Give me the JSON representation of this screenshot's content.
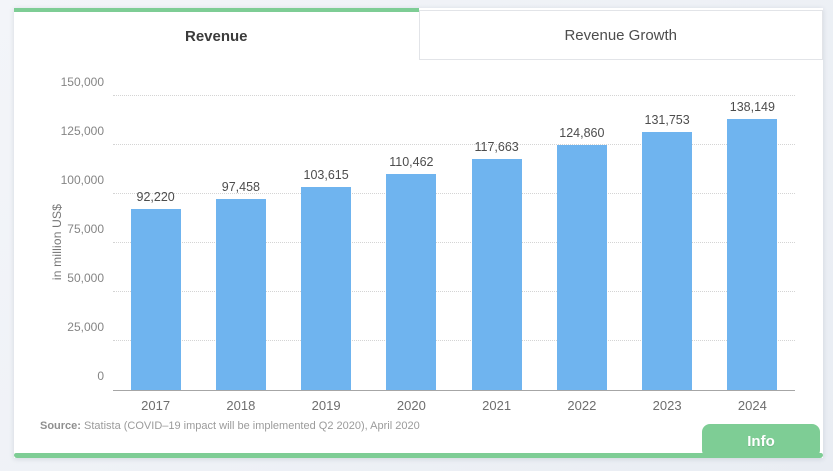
{
  "tabs": [
    {
      "label": "Revenue",
      "active": true
    },
    {
      "label": "Revenue Growth",
      "active": false
    }
  ],
  "chart_data": {
    "type": "bar",
    "categories": [
      "2017",
      "2018",
      "2019",
      "2020",
      "2021",
      "2022",
      "2023",
      "2024"
    ],
    "values": [
      92220,
      97458,
      103615,
      110462,
      117663,
      124860,
      131753,
      138149
    ],
    "value_labels": [
      "92,220",
      "97,458",
      "103,615",
      "110,462",
      "117,663",
      "124,860",
      "131,753",
      "138,149"
    ],
    "title": "",
    "xlabel": "",
    "ylabel": "in million US$",
    "ylim": [
      0,
      150000
    ],
    "yticks": [
      0,
      25000,
      50000,
      75000,
      100000,
      125000,
      150000
    ],
    "ytick_labels": [
      "0",
      "25,000",
      "50,000",
      "75,000",
      "100,000",
      "125,000",
      "150,000"
    ],
    "grid": "horizontal-dotted",
    "legend": "none",
    "bar_color": "#6fb4ef"
  },
  "source": {
    "prefix": "Source:",
    "text": " Statista (COVID–19 impact will be implemented Q2 2020), April 2020"
  },
  "info_button": {
    "label": "Info"
  },
  "colors": {
    "bar": "#6fb4ef",
    "accent_green": "#7ecd95",
    "page_background": "#edf0f5",
    "card_background": "#ffffff"
  }
}
